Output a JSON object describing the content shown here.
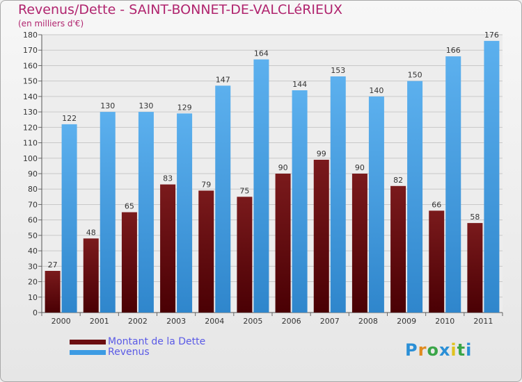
{
  "title": "Revenus/Dette - SAINT-BONNET-DE-VALCLéRIEUX",
  "subtitle": "(en milliers d'€)",
  "logo": {
    "text": "Proxiti",
    "letter_colors": [
      "#2a8fd6",
      "#e08a1e",
      "#3aa548",
      "#2a8fd6",
      "#e0c21e",
      "#3aa548",
      "#2a8fd6"
    ]
  },
  "colors": {
    "dette": "#6b0d10",
    "revenus": "#3d9be3",
    "grid": "#c8c8c8",
    "title": "#b0246e"
  },
  "legend": [
    {
      "label": "Montant de la Dette",
      "color": "#6b0d10"
    },
    {
      "label": "Revenus",
      "color": "#3d9be3"
    }
  ],
  "chart_data": {
    "type": "bar",
    "title": "Revenus/Dette - SAINT-BONNET-DE-VALCLéRIEUX",
    "subtitle": "(en milliers d'€)",
    "categories": [
      "2000",
      "2001",
      "2002",
      "2003",
      "2004",
      "2005",
      "2006",
      "2007",
      "2008",
      "2009",
      "2010",
      "2011"
    ],
    "series": [
      {
        "name": "Montant de la Dette",
        "values": [
          27,
          48,
          65,
          83,
          79,
          75,
          90,
          99,
          90,
          82,
          66,
          58
        ]
      },
      {
        "name": "Revenus",
        "values": [
          122,
          130,
          130,
          129,
          147,
          164,
          144,
          153,
          140,
          150,
          166,
          176
        ]
      }
    ],
    "ylim": [
      0,
      180
    ],
    "yticks": [
      0,
      10,
      20,
      30,
      40,
      50,
      60,
      70,
      80,
      90,
      100,
      110,
      120,
      130,
      140,
      150,
      160,
      170,
      180
    ],
    "grid": true,
    "legend_position": "bottom-left"
  }
}
